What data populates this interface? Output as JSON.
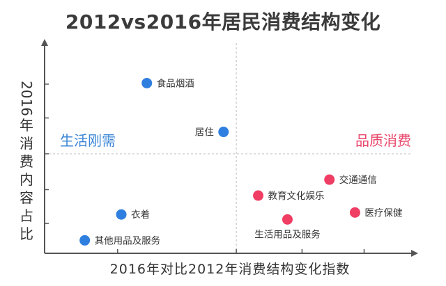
{
  "chart_data": {
    "type": "scatter",
    "title": "2012vs2016年居民消费结构变化",
    "xlabel": "2016年对比2012年消费结构变化指数",
    "ylabel_number": "2016",
    "ylabel_text": "年消费内容占比",
    "quadrant_labels": [
      {
        "text": "生活刚需",
        "color": "#3a86d6"
      },
      {
        "text": "品质消费",
        "color": "#e8456a"
      }
    ],
    "colors": {
      "necessity": "#2f7fe0",
      "quality": "#ef3d63",
      "axis": "#555555",
      "grid": "#bbbbbb"
    },
    "xlim": [
      0,
      10
    ],
    "ylim": [
      0,
      10
    ],
    "divider": {
      "x": 5.25,
      "y": 5.0
    },
    "points": [
      {
        "label": "食品烟酒",
        "x": 2.8,
        "y": 8.55,
        "group": "necessity",
        "label_pos": "right"
      },
      {
        "label": "居住",
        "x": 4.9,
        "y": 6.1,
        "group": "necessity",
        "label_pos": "left"
      },
      {
        "label": "衣着",
        "x": 2.1,
        "y": 1.95,
        "group": "necessity",
        "label_pos": "right"
      },
      {
        "label": "其他用品及服务",
        "x": 1.1,
        "y": 0.65,
        "group": "necessity",
        "label_pos": "right"
      },
      {
        "label": "交通通信",
        "x": 7.8,
        "y": 3.7,
        "group": "quality",
        "label_pos": "right"
      },
      {
        "label": "教育文化娱乐",
        "x": 5.85,
        "y": 2.9,
        "group": "quality",
        "label_pos": "right"
      },
      {
        "label": "医疗保健",
        "x": 8.5,
        "y": 2.05,
        "group": "quality",
        "label_pos": "right"
      },
      {
        "label": "生活用品及服务",
        "x": 6.65,
        "y": 1.7,
        "group": "quality",
        "label_pos": "below"
      }
    ],
    "grid": false,
    "legend": "none"
  }
}
